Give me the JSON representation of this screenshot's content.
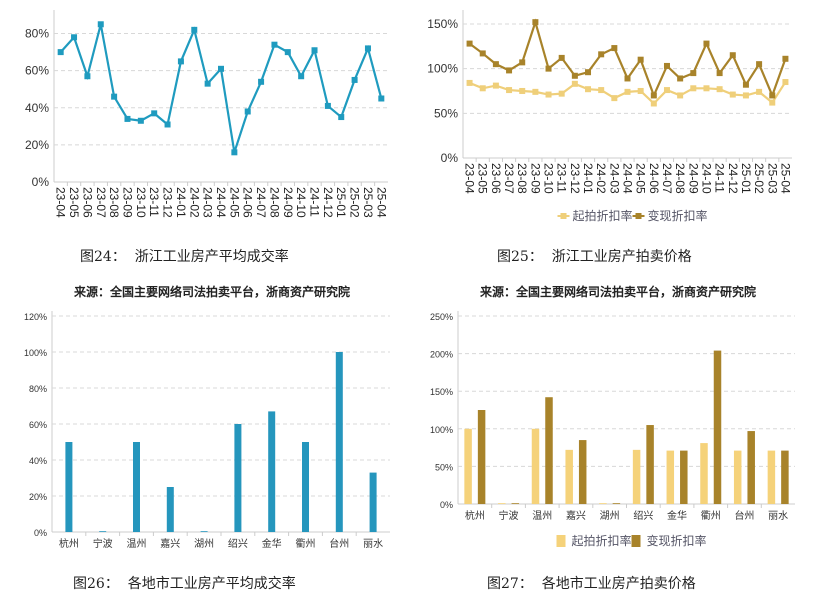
{
  "figures": [
    {
      "caption": "图24：  浙江工业房产平均成交率",
      "source": "来源：全国主要网络司法拍卖平台，浙商资产研究院"
    },
    {
      "caption": "图25：  浙江工业房产拍卖价格",
      "source": "来源：全国主要网络司法拍卖平台，浙商资产研究院"
    },
    {
      "caption": "图26：  各地市工业房产平均成交率"
    },
    {
      "caption": "图27：  各地市工业房产拍卖价格"
    }
  ],
  "chart_data": [
    {
      "type": "line",
      "categories": [
        "23-04",
        "23-05",
        "23-06",
        "23-07",
        "23-08",
        "23-09",
        "23-10",
        "23-11",
        "23-12",
        "24-01",
        "24-02",
        "24-03",
        "24-04",
        "24-05",
        "24-06",
        "24-07",
        "24-08",
        "24-09",
        "24-10",
        "24-11",
        "24-12",
        "25-01",
        "25-02",
        "25-03",
        "25-04"
      ],
      "series": [
        {
          "values": [
            70,
            78,
            57,
            85,
            46,
            34,
            33,
            37,
            31,
            65,
            82,
            53,
            61,
            16,
            38,
            54,
            74,
            70,
            57,
            71,
            41,
            35,
            55,
            72,
            45
          ],
          "color": "#1f9bbf"
        }
      ],
      "yticks": [
        "0%",
        "20%",
        "40%",
        "60%",
        "80%"
      ],
      "ylim": [
        0,
        90
      ],
      "tickstep": 20,
      "grid": true,
      "unit": "%"
    },
    {
      "type": "line",
      "categories": [
        "23-04",
        "23-05",
        "23-06",
        "23-07",
        "23-08",
        "23-09",
        "23-10",
        "23-11",
        "23-12",
        "24-01",
        "24-02",
        "24-03",
        "24-04",
        "24-05",
        "24-06",
        "24-07",
        "24-08",
        "24-09",
        "24-10",
        "24-11",
        "24-12",
        "25-01",
        "25-02",
        "25-03",
        "25-04"
      ],
      "series": [
        {
          "name": "起拍折扣率",
          "values": [
            84,
            78,
            81,
            76,
            75,
            74,
            71,
            72,
            83,
            77,
            76,
            67,
            74,
            75,
            61,
            76,
            70,
            78,
            78,
            77,
            71,
            70,
            74,
            62,
            85
          ],
          "color": "#efcf7a"
        },
        {
          "name": "变现折扣率",
          "values": [
            128,
            117,
            105,
            98,
            107,
            152,
            100,
            112,
            92,
            96,
            116,
            123,
            89,
            110,
            70,
            103,
            89,
            95,
            128,
            95,
            115,
            82,
            105,
            70,
            111
          ],
          "color": "#a8832a"
        }
      ],
      "yticks": [
        "0%",
        "50%",
        "100%",
        "150%"
      ],
      "ylim": [
        0,
        160
      ],
      "tickstep": 50,
      "grid": true,
      "legend": "bottom"
    },
    {
      "type": "bar",
      "categories": [
        "杭州",
        "宁波",
        "温州",
        "嘉兴",
        "湖州",
        "绍兴",
        "金华",
        "衢州",
        "台州",
        "丽水"
      ],
      "series": [
        {
          "values": [
            50,
            0,
            50,
            25,
            0,
            60,
            67,
            50,
            100,
            33
          ],
          "color": "#2596bd"
        }
      ],
      "yticks": [
        "0%",
        "20%",
        "40%",
        "60%",
        "80%",
        "100%",
        "120%"
      ],
      "ylim": [
        0,
        120
      ],
      "tickstep": 20,
      "grid": true
    },
    {
      "type": "bar",
      "categories": [
        "杭州",
        "宁波",
        "温州",
        "嘉兴",
        "湖州",
        "绍兴",
        "金华",
        "衢州",
        "台州",
        "丽水"
      ],
      "series": [
        {
          "name": "起拍折扣率",
          "values": [
            100,
            0,
            100,
            72,
            0,
            72,
            71,
            81,
            71,
            71
          ],
          "color": "#f5d27a"
        },
        {
          "name": "变现折扣率",
          "values": [
            125,
            0,
            142,
            85,
            0,
            105,
            71,
            204,
            97,
            71
          ],
          "color": "#a8832a"
        }
      ],
      "yticks": [
        "0%",
        "50%",
        "100%",
        "150%",
        "200%",
        "250%"
      ],
      "ylim": [
        0,
        250
      ],
      "tickstep": 50,
      "grid": true,
      "legend": "bottom"
    }
  ]
}
